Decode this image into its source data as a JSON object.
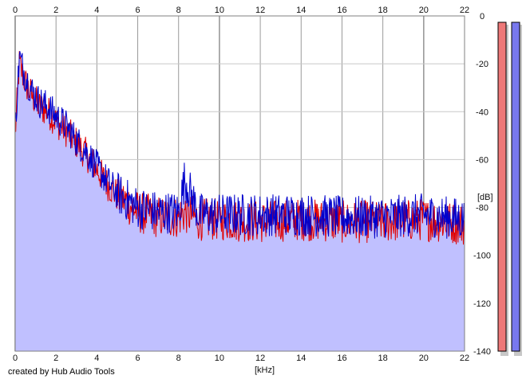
{
  "chart_data": {
    "type": "area",
    "xlabel": "[kHz]",
    "ylabel": "[dB]",
    "xlim": [
      0,
      22
    ],
    "ylim": [
      -140,
      0
    ],
    "x_ticks": [
      0,
      2,
      4,
      6,
      8,
      10,
      12,
      14,
      16,
      18,
      20,
      22
    ],
    "y_ticks": [
      0,
      -20,
      -40,
      -60,
      -80,
      -100,
      -120,
      -140
    ],
    "grid": true,
    "colors": {
      "red": "#e00000",
      "blue": "#0000cc",
      "fill": "#c0c0ff",
      "plot_bg": "#ffffff",
      "grid": "#c8c8c8"
    },
    "series": [
      {
        "color": "#e00000",
        "x": [
          0,
          0.2,
          0.5,
          0.8,
          1.2,
          1.6,
          2.0,
          2.5,
          3.0,
          3.5,
          4.0,
          4.5,
          5.0,
          5.5,
          6.0,
          7.0,
          8.0,
          8.3,
          9,
          10,
          12,
          14,
          16,
          18,
          20,
          22
        ],
        "values": [
          -50,
          -20,
          -28,
          -33,
          -38,
          -40,
          -44,
          -48,
          -53,
          -58,
          -64,
          -70,
          -75,
          -78,
          -82,
          -84,
          -84,
          -82,
          -85,
          -85,
          -86,
          -85,
          -86,
          -86,
          -85,
          -87
        ]
      },
      {
        "color": "#0000cc",
        "x": [
          0,
          0.2,
          0.5,
          0.8,
          1.2,
          1.6,
          2.0,
          2.5,
          3.0,
          3.5,
          4.0,
          4.5,
          5.0,
          5.5,
          6.0,
          7.0,
          8.0,
          8.3,
          9,
          10,
          12,
          14,
          16,
          18,
          20,
          22
        ],
        "values": [
          -48,
          -17,
          -25,
          -31,
          -36,
          -38,
          -42,
          -46,
          -52,
          -57,
          -63,
          -69,
          -74,
          -77,
          -80,
          -82,
          -82,
          -68,
          -83,
          -83,
          -83,
          -83,
          -84,
          -84,
          -83,
          -85
        ]
      }
    ],
    "meters": [
      {
        "color": "#ee7878",
        "level": -140
      },
      {
        "color": "#7878ee",
        "level": -140
      }
    ]
  },
  "meter_labels": {
    "top": "0",
    "bottom": "-140"
  },
  "credit": "created by Hub Audio Tools"
}
